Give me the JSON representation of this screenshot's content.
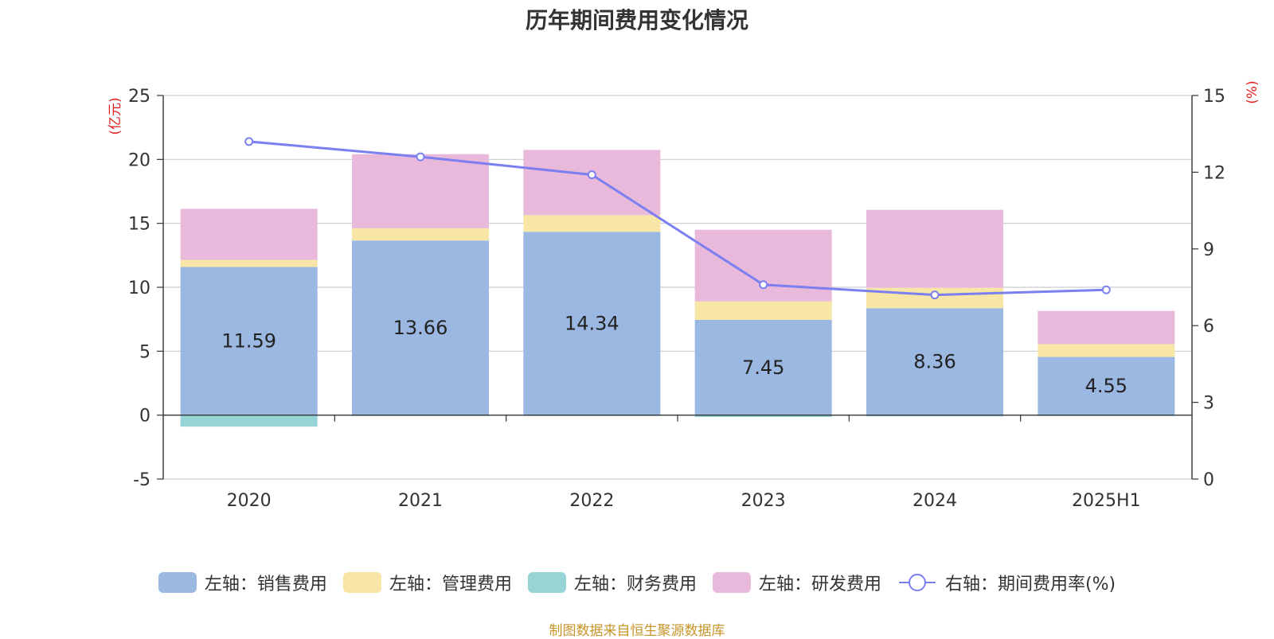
{
  "chart_data": {
    "type": "bar",
    "title": "历年期间费用变化情况",
    "categories": [
      "2020",
      "2021",
      "2022",
      "2023",
      "2024",
      "2025H1"
    ],
    "left_axis": {
      "unit_label": "(亿元)",
      "ylim": [
        -5,
        25
      ],
      "ticks": [
        25,
        20,
        15,
        10,
        5,
        0,
        -5
      ]
    },
    "right_axis": {
      "unit_label": "(%)",
      "ylim": [
        0,
        15
      ],
      "ticks": [
        15,
        12,
        9,
        6,
        3,
        0
      ]
    },
    "series": [
      {
        "name": "左轴：销售费用",
        "axis": "left",
        "kind": "bar",
        "color": "#9bb8e2",
        "values": [
          11.59,
          13.66,
          14.34,
          7.45,
          8.36,
          4.55
        ],
        "labels": [
          "11.59",
          "13.66",
          "14.34",
          "7.45",
          "8.36",
          "4.55"
        ]
      },
      {
        "name": "左轴：管理费用",
        "axis": "left",
        "kind": "bar",
        "color": "#f8e6a6",
        "values": [
          0.55,
          0.95,
          1.3,
          1.45,
          1.6,
          1.0
        ]
      },
      {
        "name": "左轴：财务费用",
        "axis": "left",
        "kind": "bar",
        "color": "#96d4d6",
        "values": [
          -0.9,
          -0.05,
          -0.05,
          -0.15,
          -0.1,
          -0.05
        ]
      },
      {
        "name": "左轴：研发费用",
        "axis": "left",
        "kind": "bar",
        "color": "#e8b9da",
        "values": [
          4.0,
          5.8,
          5.1,
          5.6,
          6.1,
          2.6
        ]
      },
      {
        "name": "右轴：期间费用率(%)",
        "axis": "right",
        "kind": "line",
        "color": "#7b7ff0",
        "values": [
          13.2,
          12.6,
          11.9,
          7.6,
          7.2,
          7.4
        ]
      }
    ],
    "grid": true,
    "legend_position": "bottom"
  },
  "footer": {
    "source": "制图数据来自恒生聚源数据库"
  }
}
